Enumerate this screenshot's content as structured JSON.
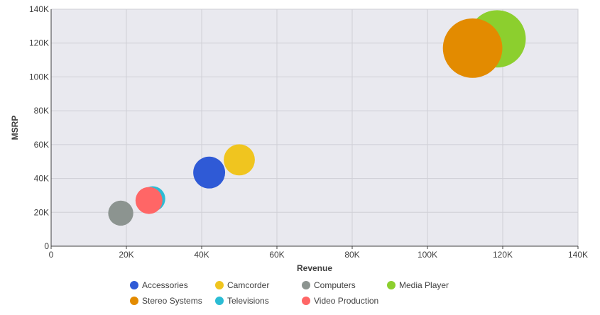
{
  "chart_data": {
    "type": "scatter",
    "subtype": "bubble",
    "xlabel": "Revenue",
    "ylabel": "MSRP",
    "xlim": [
      0,
      140000
    ],
    "ylim": [
      0,
      140000
    ],
    "x_ticks": [
      "0",
      "20K",
      "40K",
      "60K",
      "80K",
      "100K",
      "120K",
      "140K"
    ],
    "y_ticks": [
      "0",
      "20K",
      "40K",
      "60K",
      "80K",
      "100K",
      "120K",
      "140K"
    ],
    "grid": true,
    "legend_position": "bottom",
    "background_color": "#e9e9ef",
    "grid_color": "#cfcfd6",
    "series": [
      {
        "name": "Accessories",
        "color": "#2f5ad6",
        "x": 42000,
        "y": 43500,
        "size": 2.1
      },
      {
        "name": "Camcorder",
        "color": "#f0c51f",
        "x": 50000,
        "y": 51000,
        "size": 2.0
      },
      {
        "name": "Computers",
        "color": "#8c9490",
        "x": 18500,
        "y": 19500,
        "size": 1.3
      },
      {
        "name": "Media Player",
        "color": "#8ccf2e",
        "x": 118500,
        "y": 122500,
        "size": 6.8
      },
      {
        "name": "Stereo Systems",
        "color": "#e38b00",
        "x": 112000,
        "y": 117000,
        "size": 7.3
      },
      {
        "name": "Televisions",
        "color": "#2bbcd4",
        "x": 27000,
        "y": 28000,
        "size": 1.3
      },
      {
        "name": "Video Production",
        "color": "#ff6666",
        "x": 26000,
        "y": 27000,
        "size": 1.5
      }
    ]
  }
}
